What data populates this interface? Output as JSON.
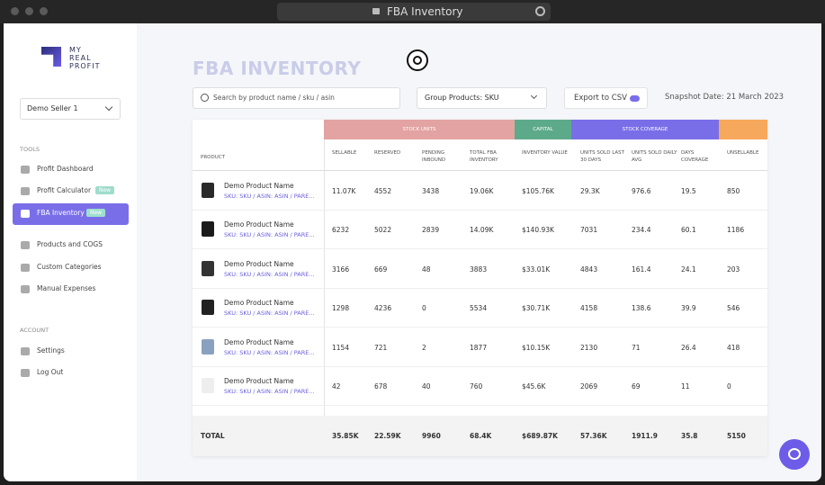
{
  "browser": {
    "tab_title": "FBA Inventory"
  },
  "sidebar": {
    "logo": [
      "MY",
      "REAL",
      "PROFIT"
    ],
    "seller": "Demo Seller 1",
    "sections": [
      {
        "title": "TOOLS",
        "items": [
          {
            "label": "Profit Dashboard"
          },
          {
            "label": "Profit Calculator",
            "badge": "New"
          },
          {
            "label": "FBA Inventory",
            "badge": "New",
            "active": true
          },
          {
            "label": "Products and COGS"
          },
          {
            "label": "Custom Categories"
          },
          {
            "label": "Manual Expenses"
          }
        ]
      },
      {
        "title": "ACCOUNT",
        "items": [
          {
            "label": "Settings"
          },
          {
            "label": "Log Out"
          }
        ]
      }
    ]
  },
  "main": {
    "title": "FBA INVENTORY",
    "search_placeholder": "Search by product name / sku / asin",
    "group_select": "Group Products: SKU",
    "export": "Export to CSV",
    "snapshot": "Snapshot Date: 21 March 2023"
  },
  "table": {
    "groups": [
      {
        "label": "STOCK UNITS",
        "color": "#e2a3a2"
      },
      {
        "label": "CAPITAL",
        "color": "#5daa8b"
      },
      {
        "label": "STOCK COVERAGE",
        "color": "#7a6ee8"
      },
      {
        "color": "#f6a95c"
      }
    ],
    "columns": [
      "PRODUCT",
      "SELLABLE",
      "RESERVED",
      "PENDING INBOUND",
      "TOTAL FBA INVENTORY",
      "INVENTORY VALUE",
      "UNITS SOLD LAST 30 DAYS",
      "UNITS SOLD DAILY AVG",
      "DAYS COVERAGE",
      "UNSELLABLE"
    ],
    "rows": [
      {
        "name": "Demo Product Name",
        "sku": "SKU: SKU / ASIN: ASIN / PARE...",
        "cells": [
          "11.07K",
          "4552",
          "3438",
          "19.06K",
          "$105.76K",
          "29.3K",
          "976.6",
          "19.5",
          "850"
        ]
      },
      {
        "name": "Demo Product Name",
        "sku": "SKU: SKU / ASIN: ASIN / PARE...",
        "cells": [
          "6232",
          "5022",
          "2839",
          "14.09K",
          "$140.93K",
          "7031",
          "234.4",
          "60.1",
          "1186"
        ]
      },
      {
        "name": "Demo Product Name",
        "sku": "SKU: SKU / ASIN: ASIN / PARE...",
        "cells": [
          "3166",
          "669",
          "48",
          "3883",
          "$33.01K",
          "4843",
          "161.4",
          "24.1",
          "203"
        ]
      },
      {
        "name": "Demo Product Name",
        "sku": "SKU: SKU / ASIN: ASIN / PARE...",
        "cells": [
          "1298",
          "4236",
          "0",
          "5534",
          "$30.71K",
          "4158",
          "138.6",
          "39.9",
          "546"
        ]
      },
      {
        "name": "Demo Product Name",
        "sku": "SKU: SKU / ASIN: ASIN / PARE...",
        "cells": [
          "1154",
          "721",
          "2",
          "1877",
          "$10.15K",
          "2130",
          "71",
          "26.4",
          "418"
        ]
      },
      {
        "name": "Demo Product Name",
        "sku": "SKU: SKU / ASIN: ASIN / PARE...",
        "cells": [
          "42",
          "678",
          "40",
          "760",
          "$45.6K",
          "2069",
          "69",
          "11",
          "0"
        ]
      }
    ],
    "total": {
      "label": "TOTAL",
      "cells": [
        "35.85K",
        "22.59K",
        "9960",
        "68.4K",
        "$689.87K",
        "57.36K",
        "1911.9",
        "35.8",
        "5150"
      ]
    }
  }
}
